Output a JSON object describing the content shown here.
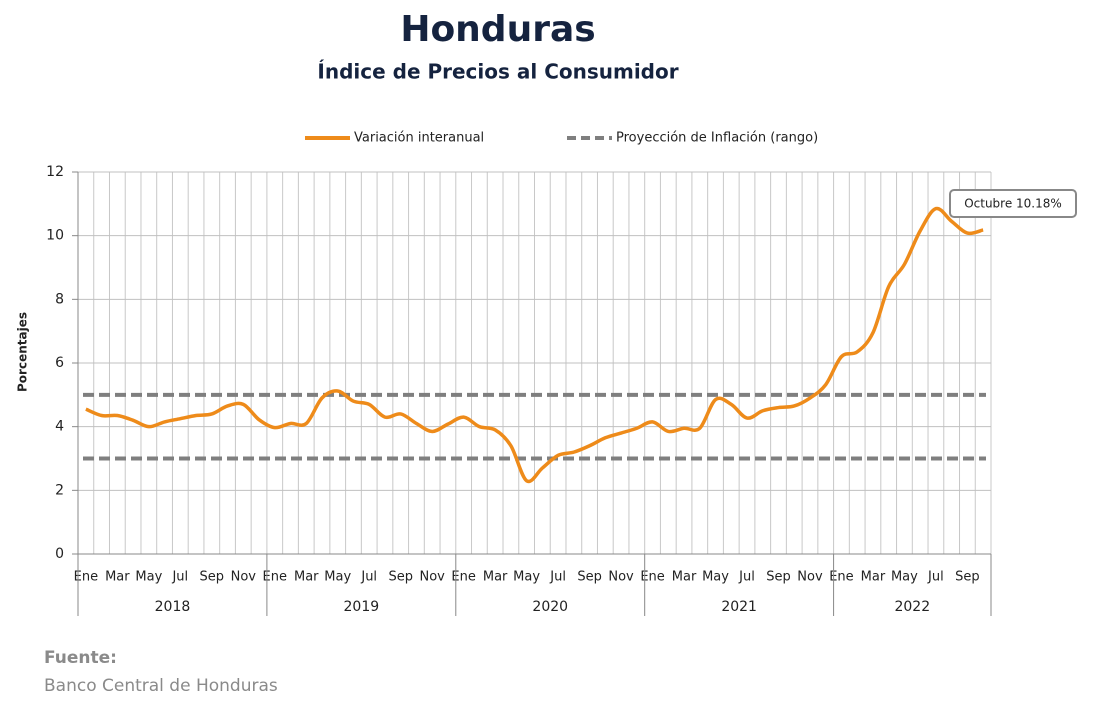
{
  "chart_data": {
    "type": "line",
    "title": "Honduras",
    "subtitle": "Índice de Precios al Consumidor",
    "y_label": "Porcentajes",
    "categories": [
      "Ene",
      null,
      "Mar",
      null,
      "May",
      null,
      "Jul",
      null,
      "Sep",
      null,
      "Nov",
      null,
      "Ene",
      null,
      "Mar",
      null,
      "May",
      null,
      "Jul",
      null,
      "Sep",
      null,
      "Nov",
      null,
      "Ene",
      null,
      "Mar",
      null,
      "May",
      null,
      "Jul",
      null,
      "Sep",
      null,
      "Nov",
      null,
      "Ene",
      null,
      "Mar",
      null,
      "May",
      null,
      "Jul",
      null,
      "Sep",
      null,
      "Nov",
      null,
      "Ene",
      null,
      "Mar",
      null,
      "May",
      null,
      "Jul",
      null,
      "Sep",
      null
    ],
    "year_groups": [
      "2018",
      "2019",
      "2020",
      "2021",
      "2022"
    ],
    "series": [
      {
        "name": "Variación interanual",
        "color": "#ee8b1a",
        "values": [
          4.55,
          4.35,
          4.35,
          4.2,
          4.0,
          4.15,
          4.25,
          4.35,
          4.4,
          4.65,
          4.7,
          4.22,
          3.97,
          4.1,
          4.1,
          4.9,
          5.12,
          4.8,
          4.7,
          4.3,
          4.4,
          4.1,
          3.85,
          4.08,
          4.3,
          4.0,
          3.9,
          3.4,
          2.3,
          2.7,
          3.1,
          3.2,
          3.4,
          3.65,
          3.8,
          3.95,
          4.15,
          3.85,
          3.95,
          3.95,
          4.85,
          4.7,
          4.27,
          4.5,
          4.6,
          4.65,
          4.9,
          5.32,
          6.2,
          6.35,
          6.95,
          8.4,
          9.1,
          10.15,
          10.85,
          10.45,
          10.08,
          10.18
        ]
      }
    ],
    "reference_lines": {
      "name": "Proyección de Inflación (rango)",
      "color": "#7f7f7f",
      "values": [
        3,
        5
      ]
    },
    "annotation": "Octubre 10.18%",
    "ylim": [
      0,
      12
    ],
    "yticks": [
      0,
      2,
      4,
      6,
      8,
      10,
      12
    ],
    "grid": true,
    "source_heading": "Fuente:",
    "source": "Banco Central de Honduras"
  }
}
